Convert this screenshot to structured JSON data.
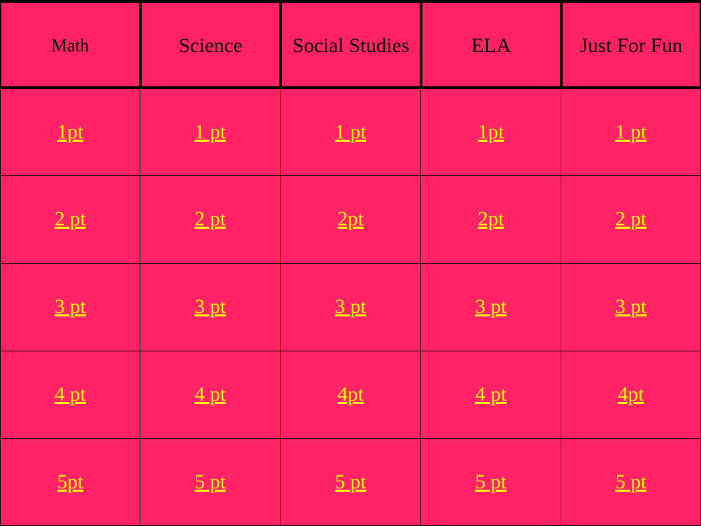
{
  "categories": [
    "Math",
    "Science",
    "Social Studies",
    "ELA",
    "Just For Fun"
  ],
  "rows": [
    [
      "1pt",
      "1 pt",
      "1 pt",
      "1pt",
      "1 pt"
    ],
    [
      "2 pt",
      "2 pt",
      "2pt",
      "2pt",
      "2 pt"
    ],
    [
      "3 pt",
      "3 pt",
      "3 pt",
      "3 pt",
      "3 pt"
    ],
    [
      "4 pt",
      "4 pt",
      "4pt",
      "4 pt",
      "4pt"
    ],
    [
      "5pt",
      "5 pt",
      "5 pt",
      "5 pt",
      "5 pt"
    ]
  ],
  "colors": {
    "cell_background": "#ff2266",
    "link_text": "#ffff00",
    "header_text": "#000000",
    "border": "#000000"
  }
}
